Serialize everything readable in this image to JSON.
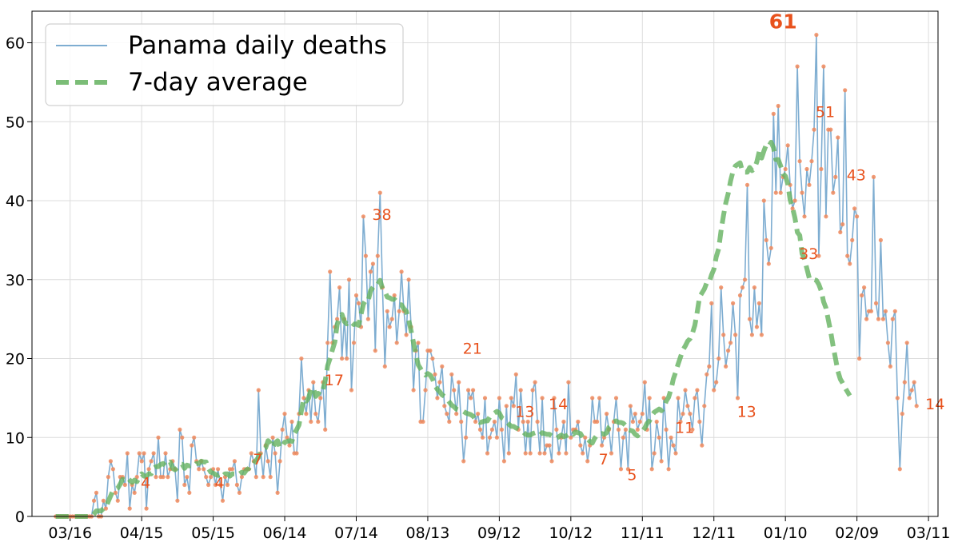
{
  "chart_data": {
    "type": "line",
    "x_start": "2020-03-10",
    "x_ticks": [
      "03/16",
      "04/15",
      "05/15",
      "06/14",
      "07/14",
      "08/13",
      "09/12",
      "10/12",
      "11/11",
      "12/11",
      "01/10",
      "02/09",
      "03/11"
    ],
    "x_tick_days": [
      6,
      36,
      66,
      96,
      126,
      156,
      186,
      216,
      246,
      276,
      306,
      336,
      366
    ],
    "xlim": [
      -10,
      370
    ],
    "ylim": [
      0,
      64
    ],
    "y_ticks": [
      0,
      10,
      20,
      30,
      40,
      50,
      60
    ],
    "grid": true,
    "legend": {
      "placement": "top-left",
      "entries": [
        "Panama daily deaths",
        "7-day average"
      ]
    },
    "colors": {
      "daily_line": "#7eadd1",
      "points": "#f08a5d",
      "average": "#64b25f",
      "annotations": "#e8521d"
    },
    "series": [
      {
        "name": "Panama daily deaths",
        "values": [
          0,
          0,
          0,
          0,
          0,
          0,
          0,
          0,
          0,
          0,
          0,
          0,
          0,
          0,
          0,
          0,
          2,
          3,
          0,
          0,
          2,
          1,
          5,
          7,
          6,
          3,
          2,
          5,
          5,
          4,
          8,
          1,
          4,
          3,
          5,
          8,
          7,
          8,
          1,
          6,
          7,
          8,
          5,
          10,
          5,
          5,
          8,
          5,
          6,
          7,
          6,
          2,
          11,
          10,
          4,
          5,
          3,
          9,
          10,
          7,
          6,
          7,
          6,
          5,
          4,
          5,
          6,
          4,
          6,
          4,
          2,
          5,
          4,
          6,
          6,
          7,
          4,
          3,
          5,
          6,
          6,
          6,
          8,
          7,
          5,
          16,
          8,
          5,
          9,
          7,
          5,
          10,
          8,
          3,
          7,
          11,
          13,
          10,
          9,
          12,
          8,
          8,
          13,
          20,
          15,
          13,
          16,
          12,
          17,
          13,
          12,
          15,
          17,
          11,
          22,
          31,
          22,
          24,
          25,
          29,
          20,
          25,
          20,
          30,
          16,
          22,
          28,
          27,
          24,
          38,
          33,
          25,
          31,
          32,
          21,
          33,
          41,
          29,
          19,
          26,
          24,
          25,
          28,
          22,
          26,
          31,
          26,
          23,
          30,
          24,
          16,
          21,
          22,
          12,
          12,
          16,
          21,
          21,
          20,
          18,
          15,
          17,
          19,
          14,
          13,
          12,
          18,
          16,
          13,
          17,
          12,
          7,
          10,
          16,
          15,
          16,
          12,
          13,
          11,
          10,
          15,
          8,
          10,
          11,
          12,
          10,
          15,
          11,
          7,
          14,
          8,
          15,
          14,
          18,
          11,
          16,
          12,
          8,
          12,
          8,
          16,
          17,
          12,
          8,
          15,
          8,
          9,
          9,
          7,
          15,
          11,
          8,
          10,
          12,
          8,
          17,
          10,
          11,
          11,
          12,
          9,
          8,
          10,
          7,
          9,
          15,
          12,
          12,
          15,
          9,
          10,
          13,
          11,
          8,
          12,
          15,
          11,
          6,
          10,
          11,
          6,
          14,
          12,
          13,
          11,
          12,
          13,
          17,
          11,
          15,
          6,
          8,
          12,
          10,
          7,
          15,
          11,
          6,
          10,
          9,
          8,
          15,
          12,
          13,
          16,
          14,
          13,
          11,
          15,
          16,
          12,
          9,
          14,
          18,
          19,
          27,
          16,
          17,
          20,
          29,
          23,
          19,
          21,
          22,
          27,
          23,
          15,
          28,
          29,
          30,
          42,
          25,
          23,
          29,
          24,
          27,
          23,
          40,
          35,
          32,
          34,
          51,
          41,
          52,
          41,
          43,
          44,
          47,
          42,
          39,
          40,
          57,
          45,
          41,
          38,
          44,
          42,
          45,
          49,
          61,
          33,
          44,
          57,
          38,
          49,
          49,
          41,
          43,
          48,
          36,
          37,
          54,
          33,
          32,
          35,
          39,
          38,
          20,
          28,
          29,
          25,
          26,
          26,
          43,
          27,
          25,
          35,
          25,
          26,
          22,
          19,
          25,
          26,
          15,
          6,
          13,
          17,
          22,
          15,
          16,
          17,
          14
        ],
        "peak_label": "61"
      },
      {
        "name": "7-day average",
        "values": [
          0,
          0,
          0,
          0,
          0,
          0,
          0,
          0,
          0,
          0,
          0,
          0,
          0,
          0,
          0,
          0,
          0.3,
          0.7,
          0.7,
          0.7,
          1,
          1.1,
          1.9,
          2.6,
          3.3,
          3.4,
          3.6,
          4.1,
          4.7,
          4.6,
          4.9,
          4.6,
          4.3,
          4.6,
          4.4,
          4.9,
          5.4,
          5.1,
          5.1,
          5.4,
          5.4,
          6.1,
          6.3,
          6.3,
          6.6,
          6.7,
          6.4,
          6.7,
          6.9,
          6.1,
          5.9,
          6.2,
          6.6,
          6.6,
          6.1,
          6.5,
          6.4,
          6.5,
          6.4,
          6.7,
          6.7,
          7,
          6.9,
          6.9,
          6.1,
          5.6,
          5.5,
          5.3,
          5.2,
          5.4,
          5.1,
          5.4,
          5.4,
          5.1,
          5.4,
          5.4,
          5.6,
          5.4,
          5.6,
          5.5,
          5.9,
          6.1,
          6.6,
          6.7,
          7.1,
          7.5,
          8.3,
          8.5,
          8.7,
          9.6,
          9.3,
          8.7,
          9.3,
          9.6,
          8.7,
          8.9,
          9.4,
          9.5,
          9.6,
          9.5,
          10.5,
          11,
          11.6,
          13.4,
          14.9,
          14.6,
          15,
          16.1,
          16.3,
          15.2,
          15.6,
          15.4,
          16,
          17.2,
          19.1,
          20,
          21.1,
          22.1,
          24.3,
          25.3,
          25.6,
          24.7,
          24.4,
          24.7,
          24.6,
          24.3,
          24.4,
          24.2,
          25.6,
          26.9,
          27.4,
          27.3,
          28.6,
          29,
          29.4,
          29.4,
          29.9,
          28.9,
          28.5,
          27.8,
          27.7,
          27.5,
          27.5,
          27.2,
          26.8,
          26.8,
          26.3,
          26,
          24.9,
          23.5,
          22,
          20.5,
          19.2,
          18.7,
          18.2,
          17.9,
          18.1,
          17.9,
          17.4,
          16.6,
          16.1,
          15.8,
          15.4,
          15.2,
          14.9,
          14.5,
          14.1,
          13.9,
          13.6,
          13.5,
          13.3,
          13.3,
          13.1,
          13,
          12.9,
          12.7,
          12.3,
          12.1,
          11.9,
          12,
          12.1,
          12.1,
          12.6,
          12.9,
          13.1,
          13.3,
          13.1,
          12.5,
          12.3,
          12,
          11.7,
          11.4,
          11.4,
          11.2,
          11.1,
          10.9,
          10.7,
          10.4,
          10.3,
          10.3,
          10.5,
          10.6,
          10.3,
          10.3,
          10.6,
          10.5,
          10.4,
          10.4,
          10.2,
          9.9,
          9.9,
          10.1,
          10.3,
          10.1,
          10.2,
          10.4,
          10.6,
          10.4,
          10.7,
          10.6,
          10.5,
          10,
          9.9,
          9.8,
          9.5,
          9.3,
          9.9,
          10.3,
          10.4,
          10.5,
          10.4,
          10.6,
          11.3,
          11.6,
          12,
          12.1,
          11.9,
          11.9,
          11.8,
          11.5,
          11,
          10.9,
          10.8,
          10.4,
          10.2,
          10.6,
          10.8,
          11.2,
          11.8,
          12.1,
          12.8,
          13.2,
          13.4,
          13.6,
          13.4,
          13.7,
          14.6,
          15.1,
          16.1,
          17.4,
          18.3,
          19.3,
          20.2,
          21.1,
          21.6,
          22.2,
          22.5,
          23.2,
          24.2,
          25.9,
          27.8,
          28.3,
          28.8,
          29.6,
          29.6,
          30.6,
          31.3,
          32.9,
          33.9,
          36.2,
          38.1,
          39.7,
          40.9,
          42.5,
          43.7,
          44.4,
          44.6,
          44.8,
          43.7,
          43.6,
          43.6,
          44.2,
          43.8,
          44.1,
          44.9,
          46.2,
          45.4,
          46.3,
          47.1,
          46.9,
          47.4,
          46.7,
          45.2,
          45.2,
          44.4,
          43.4,
          43.1,
          42.1,
          40.1,
          39.1,
          37.8,
          36,
          35.6,
          33.3,
          32.6,
          31.4,
          30.2,
          29.9,
          30,
          29.9,
          29.4,
          28.6,
          27.2,
          26.4,
          24.9,
          23.4,
          21.6,
          20,
          18.4,
          17.4,
          16.9,
          16.3,
          15.8,
          15.3
        ]
      }
    ],
    "annotations": [
      "4",
      "4",
      "7",
      "17",
      "38",
      "21",
      "13",
      "14",
      "7",
      "5",
      "11",
      "13",
      "51",
      "61",
      "33",
      "43",
      "14"
    ],
    "annotation_days": [
      35,
      66,
      82,
      112,
      132,
      170,
      192,
      206,
      227,
      239,
      259,
      285,
      318,
      305,
      311,
      331,
      364
    ],
    "annotation_values": [
      4,
      4,
      7,
      17,
      38,
      21,
      13,
      14,
      7,
      5,
      11,
      13,
      51,
      61,
      33,
      43,
      14
    ]
  }
}
